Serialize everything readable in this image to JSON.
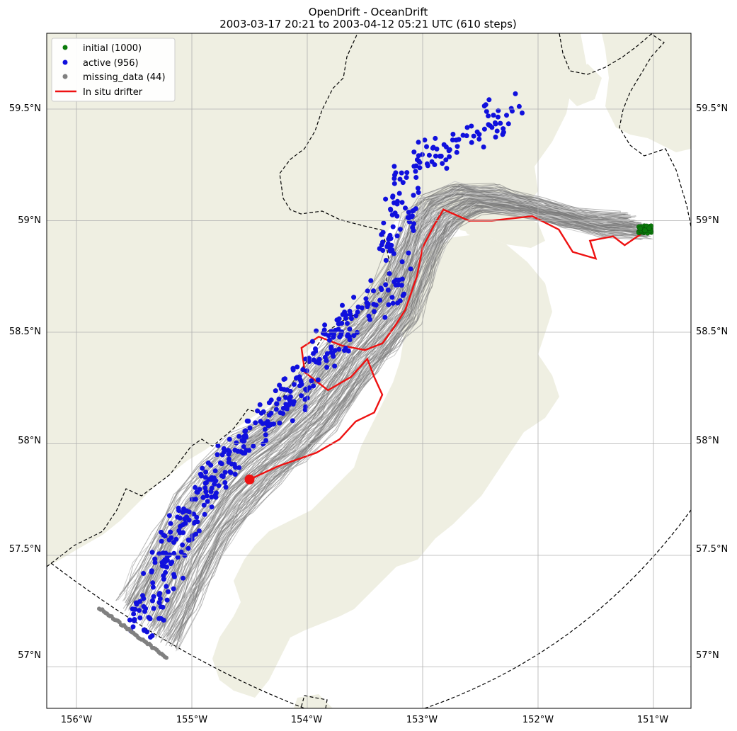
{
  "title_line1": "OpenDrift - OceanDrift",
  "title_line2": "2003-03-17 20:21 to 2003-04-12 05:21 UTC (610 steps)",
  "legend": {
    "placement": "top-left",
    "entries": [
      {
        "label": "initial (1000)",
        "color": "#0a7a0a",
        "kind": "dot"
      },
      {
        "label": "active (956)",
        "color": "#1010dd",
        "kind": "dot"
      },
      {
        "label": "missing_data (44)",
        "color": "#808080",
        "kind": "dot"
      },
      {
        "label": "In situ drifter",
        "color": "#ee1111",
        "kind": "line"
      }
    ]
  },
  "axes": {
    "lon_ticks": [
      "156°W",
      "155°W",
      "154°W",
      "153°W",
      "152°W",
      "151°W"
    ],
    "lat_ticks": [
      "59.5°N",
      "59°N",
      "58.5°N",
      "58°N",
      "57.5°N",
      "57°N"
    ],
    "grid": true
  },
  "colors": {
    "land": "#efefe2",
    "trajectory": "#7a7a7a",
    "faint_trajectory": "#c8c8c8",
    "drifter": "#ee1111",
    "active": "#1010dd",
    "missing": "#808080",
    "initial": "#0a7a0a"
  },
  "chart_data": {
    "type": "map",
    "lon_range": [
      -156.3,
      -150.65
    ],
    "lat_range": [
      56.75,
      59.85
    ],
    "drifter_track": [
      [
        -151.05,
        58.96
      ],
      [
        -151.25,
        58.89
      ],
      [
        -151.35,
        58.93
      ],
      [
        -151.55,
        58.91
      ],
      [
        -151.5,
        58.83
      ],
      [
        -151.7,
        58.86
      ],
      [
        -151.82,
        58.96
      ],
      [
        -152.05,
        59.02
      ],
      [
        -152.4,
        59.0
      ],
      [
        -152.6,
        59.0
      ],
      [
        -152.82,
        59.05
      ],
      [
        -152.9,
        58.98
      ],
      [
        -153.0,
        58.88
      ],
      [
        -153.05,
        58.75
      ],
      [
        -153.15,
        58.6
      ],
      [
        -153.25,
        58.52
      ],
      [
        -153.35,
        58.45
      ],
      [
        -153.5,
        58.42
      ],
      [
        -153.7,
        58.44
      ],
      [
        -153.9,
        58.48
      ],
      [
        -154.05,
        58.43
      ],
      [
        -154.02,
        58.32
      ],
      [
        -153.82,
        58.24
      ],
      [
        -153.62,
        58.3
      ],
      [
        -153.48,
        58.38
      ],
      [
        -153.42,
        58.3
      ],
      [
        -153.35,
        58.22
      ],
      [
        -153.42,
        58.14
      ],
      [
        -153.58,
        58.1
      ],
      [
        -153.72,
        58.02
      ],
      [
        -153.92,
        57.96
      ],
      [
        -154.25,
        57.9
      ],
      [
        -154.5,
        57.84
      ]
    ],
    "drifter_end": [
      -154.5,
      57.84
    ],
    "initial_position": [
      -151.07,
      58.96
    ],
    "active_count": 956,
    "missing_count": 44,
    "initial_count": 1000
  }
}
